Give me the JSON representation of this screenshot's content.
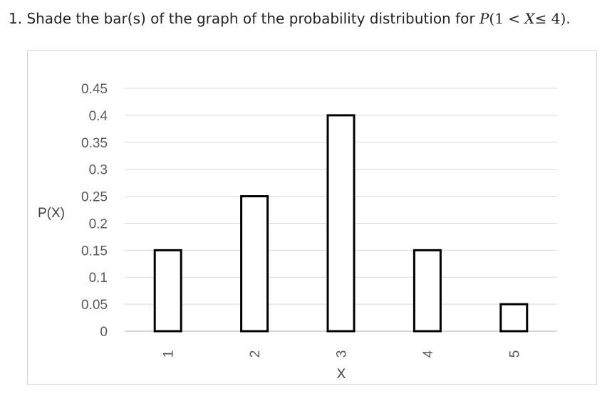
{
  "question": {
    "prefix": "1. Shade the bar(s) of the graph of the probability distribution for ",
    "math_p": "P",
    "math_open": "(1 < ",
    "math_x": "X",
    "math_close": "≤ 4)",
    "suffix": "."
  },
  "chart_data": {
    "type": "bar",
    "categories": [
      "1",
      "2",
      "3",
      "4",
      "5"
    ],
    "values": [
      0.15,
      0.25,
      0.4,
      0.15,
      0.05
    ],
    "xlabel": "X",
    "ylabel": "P(X)",
    "ylim": [
      0,
      0.45
    ],
    "yticks": [
      "0",
      "0.05",
      "0.1",
      "0.15",
      "0.2",
      "0.25",
      "0.3",
      "0.35",
      "0.4",
      "0.45"
    ],
    "grid": true,
    "bar_fill": "#ffffff",
    "bar_stroke": "#000000"
  }
}
